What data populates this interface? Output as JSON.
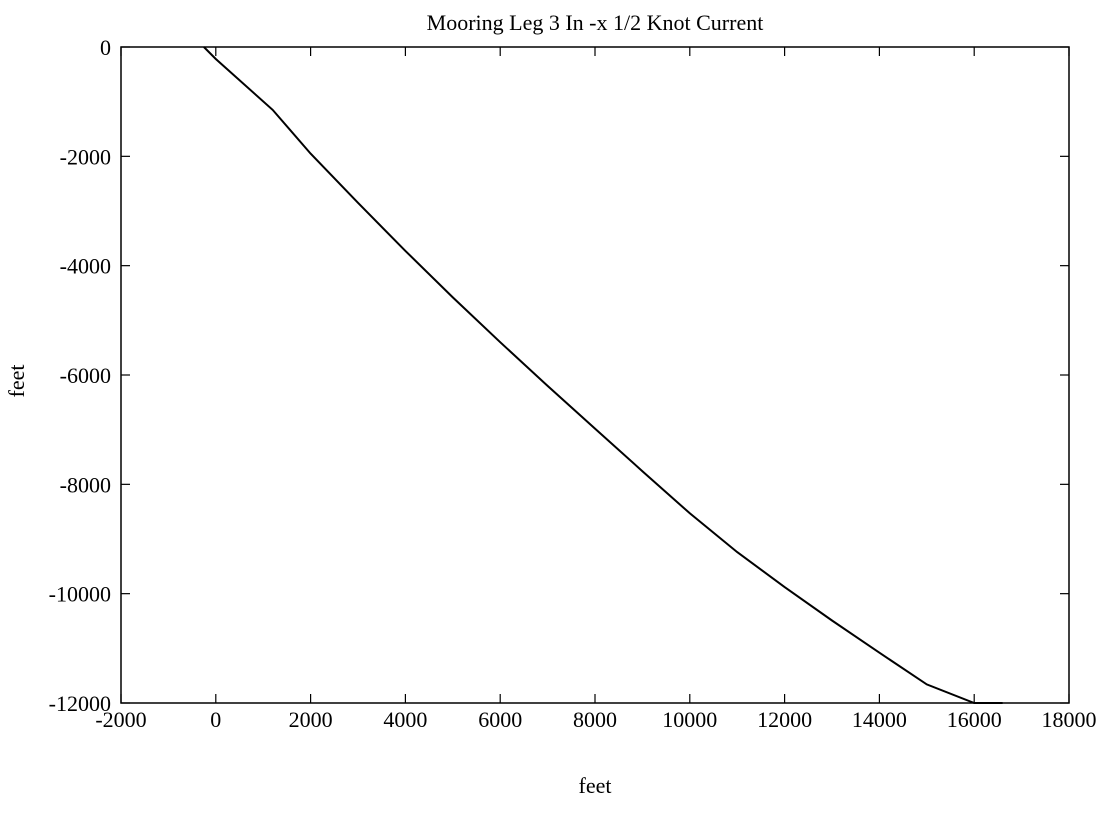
{
  "chart_data": {
    "type": "line",
    "title": "Mooring Leg 3 In -x 1/2 Knot Current",
    "xlabel": "feet",
    "ylabel": "feet",
    "xlim": [
      -2000,
      18000
    ],
    "ylim": [
      -12000,
      0
    ],
    "xticks": [
      -2000,
      0,
      2000,
      4000,
      6000,
      8000,
      10000,
      12000,
      14000,
      16000,
      18000
    ],
    "yticks": [
      0,
      -2000,
      -4000,
      -6000,
      -8000,
      -10000,
      -12000
    ],
    "xtick_labels": [
      "-2000",
      "0",
      "2000",
      "4000",
      "6000",
      "8000",
      "10000",
      "12000",
      "14000",
      "16000",
      "18000"
    ],
    "ytick_labels": [
      "0",
      "-2000",
      "-4000",
      "-6000",
      "-8000",
      "-10000",
      "-12000"
    ],
    "grid": false,
    "series": [
      {
        "x": [
          -250,
          0,
          1200,
          2000,
          3000,
          4000,
          5000,
          6000,
          7000,
          8000,
          9000,
          10000,
          11000,
          12000,
          13000,
          14000,
          15000,
          16000,
          16600
        ],
        "y": [
          0,
          -220,
          -1150,
          -1950,
          -2850,
          -3730,
          -4580,
          -5400,
          -6200,
          -6980,
          -7760,
          -8530,
          -9240,
          -9880,
          -10490,
          -11080,
          -11660,
          -12000,
          -12000
        ]
      }
    ],
    "line_color": "#000000"
  }
}
